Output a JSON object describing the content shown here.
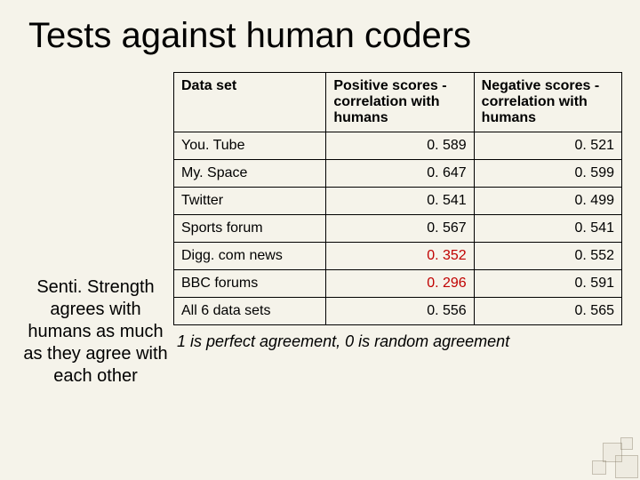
{
  "title": "Tests against human coders",
  "side_note": "Senti. Strength agrees with humans as much as they agree with each other",
  "table": {
    "headers": {
      "col0": "Data set",
      "col1": "Positive scores - correlation with humans",
      "col2": "Negative scores - correlation with humans"
    },
    "rows": [
      {
        "label": "You. Tube",
        "pos": "0. 589",
        "neg": "0. 521",
        "highlight": false
      },
      {
        "label": "My. Space",
        "pos": "0. 647",
        "neg": "0. 599",
        "highlight": false
      },
      {
        "label": "Twitter",
        "pos": "0. 541",
        "neg": "0. 499",
        "highlight": false
      },
      {
        "label": "Sports forum",
        "pos": "0. 567",
        "neg": "0. 541",
        "highlight": false
      },
      {
        "label": "Digg. com news",
        "pos": "0. 352",
        "neg": "0. 552",
        "highlight": true
      },
      {
        "label": "BBC forums",
        "pos": "0. 296",
        "neg": "0. 591",
        "highlight": true
      },
      {
        "label": "All 6 data sets",
        "pos": "0. 556",
        "neg": "0. 565",
        "highlight": false
      }
    ]
  },
  "footnote": "1 is perfect agreement, 0 is random agreement",
  "colors": {
    "background": "#f5f3ea",
    "text": "#000000",
    "highlight": "#c00000",
    "border": "#000000"
  },
  "col_widths": {
    "col0": "34%",
    "col1": "33%",
    "col2": "33%"
  }
}
